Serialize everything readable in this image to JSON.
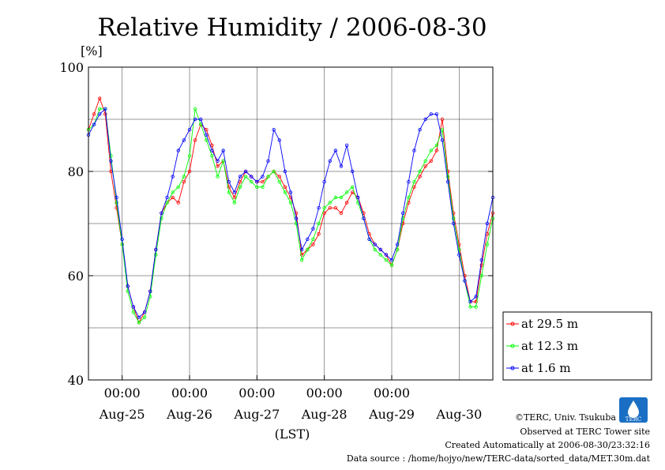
{
  "chart_data": {
    "type": "line",
    "title": "Relative Humidity / 2006-08-30",
    "ylabel": "[%]",
    "xlabel": "(LST)",
    "ylim": [
      40,
      100
    ],
    "yticks": [
      40,
      60,
      80,
      100
    ],
    "xlim_hours": [
      -12,
      132
    ],
    "x_time_labels": [
      "00:00",
      "00:00",
      "00:00",
      "00:00",
      "00:00"
    ],
    "x_date_labels": [
      "Aug-25",
      "Aug-26",
      "Aug-27",
      "Aug-28",
      "Aug-29",
      "Aug-30"
    ],
    "grid": true,
    "legend_position": "bottom-right outside",
    "series": [
      {
        "name": "at 29.5 m",
        "color": "#ff0000",
        "points": [
          [
            -12,
            88
          ],
          [
            -10,
            91
          ],
          [
            -8,
            94
          ],
          [
            -6,
            91
          ],
          [
            -4,
            80
          ],
          [
            -2,
            73
          ],
          [
            0,
            66
          ],
          [
            2,
            58
          ],
          [
            4,
            54
          ],
          [
            6,
            51
          ],
          [
            8,
            53
          ],
          [
            10,
            57
          ],
          [
            12,
            65
          ],
          [
            14,
            72
          ],
          [
            16,
            74
          ],
          [
            18,
            75
          ],
          [
            20,
            74
          ],
          [
            22,
            78
          ],
          [
            24,
            80
          ],
          [
            26,
            86
          ],
          [
            28,
            89
          ],
          [
            30,
            88
          ],
          [
            32,
            85
          ],
          [
            34,
            81
          ],
          [
            36,
            82
          ],
          [
            38,
            77
          ],
          [
            40,
            75
          ],
          [
            42,
            78
          ],
          [
            44,
            80
          ],
          [
            46,
            79
          ],
          [
            48,
            78
          ],
          [
            50,
            78
          ],
          [
            52,
            79
          ],
          [
            54,
            80
          ],
          [
            56,
            79
          ],
          [
            58,
            77
          ],
          [
            60,
            75
          ],
          [
            62,
            72
          ],
          [
            64,
            64
          ],
          [
            66,
            65
          ],
          [
            68,
            66
          ],
          [
            70,
            68
          ],
          [
            72,
            72
          ],
          [
            74,
            73
          ],
          [
            76,
            73
          ],
          [
            78,
            72
          ],
          [
            80,
            74
          ],
          [
            82,
            76
          ],
          [
            84,
            75
          ],
          [
            86,
            72
          ],
          [
            88,
            68
          ],
          [
            90,
            66
          ],
          [
            92,
            65
          ],
          [
            94,
            64
          ],
          [
            96,
            62
          ],
          [
            98,
            65
          ],
          [
            100,
            70
          ],
          [
            102,
            74
          ],
          [
            104,
            77
          ],
          [
            106,
            79
          ],
          [
            108,
            81
          ],
          [
            110,
            82
          ],
          [
            112,
            84
          ],
          [
            114,
            90
          ],
          [
            116,
            80
          ],
          [
            118,
            72
          ],
          [
            120,
            66
          ],
          [
            122,
            60
          ],
          [
            124,
            55
          ],
          [
            126,
            55
          ],
          [
            128,
            62
          ],
          [
            130,
            68
          ],
          [
            132,
            72
          ]
        ]
      },
      {
        "name": "at 12.3 m",
        "color": "#00ff00",
        "points": [
          [
            -12,
            88
          ],
          [
            -10,
            89
          ],
          [
            -8,
            92
          ],
          [
            -6,
            92
          ],
          [
            -4,
            83
          ],
          [
            -2,
            74
          ],
          [
            0,
            66
          ],
          [
            2,
            57
          ],
          [
            4,
            53
          ],
          [
            6,
            51
          ],
          [
            8,
            52
          ],
          [
            10,
            56
          ],
          [
            12,
            64
          ],
          [
            14,
            71
          ],
          [
            16,
            74
          ],
          [
            18,
            76
          ],
          [
            20,
            77
          ],
          [
            22,
            79
          ],
          [
            24,
            83
          ],
          [
            26,
            92
          ],
          [
            28,
            89
          ],
          [
            30,
            86
          ],
          [
            32,
            83
          ],
          [
            34,
            79
          ],
          [
            36,
            82
          ],
          [
            38,
            76
          ],
          [
            40,
            74
          ],
          [
            42,
            77
          ],
          [
            44,
            79
          ],
          [
            46,
            78
          ],
          [
            48,
            77
          ],
          [
            50,
            77
          ],
          [
            52,
            79
          ],
          [
            54,
            80
          ],
          [
            56,
            78
          ],
          [
            58,
            76
          ],
          [
            60,
            74
          ],
          [
            62,
            70
          ],
          [
            64,
            63
          ],
          [
            66,
            65
          ],
          [
            68,
            67
          ],
          [
            70,
            70
          ],
          [
            72,
            73
          ],
          [
            74,
            74
          ],
          [
            76,
            75
          ],
          [
            78,
            75
          ],
          [
            80,
            76
          ],
          [
            82,
            77
          ],
          [
            84,
            74
          ],
          [
            86,
            71
          ],
          [
            88,
            67
          ],
          [
            90,
            65
          ],
          [
            92,
            64
          ],
          [
            94,
            63
          ],
          [
            96,
            62
          ],
          [
            98,
            65
          ],
          [
            100,
            71
          ],
          [
            102,
            75
          ],
          [
            104,
            78
          ],
          [
            106,
            80
          ],
          [
            108,
            82
          ],
          [
            110,
            84
          ],
          [
            112,
            85
          ],
          [
            114,
            88
          ],
          [
            116,
            79
          ],
          [
            118,
            71
          ],
          [
            120,
            65
          ],
          [
            122,
            59
          ],
          [
            124,
            54
          ],
          [
            126,
            54
          ],
          [
            128,
            60
          ],
          [
            130,
            66
          ],
          [
            132,
            71
          ]
        ]
      },
      {
        "name": "at 1.6 m",
        "color": "#0000ff",
        "points": [
          [
            -12,
            87
          ],
          [
            -10,
            89
          ],
          [
            -8,
            91
          ],
          [
            -6,
            92
          ],
          [
            -4,
            82
          ],
          [
            -2,
            75
          ],
          [
            0,
            67
          ],
          [
            2,
            58
          ],
          [
            4,
            54
          ],
          [
            6,
            52
          ],
          [
            8,
            53
          ],
          [
            10,
            57
          ],
          [
            12,
            65
          ],
          [
            14,
            72
          ],
          [
            16,
            75
          ],
          [
            18,
            79
          ],
          [
            20,
            84
          ],
          [
            22,
            86
          ],
          [
            24,
            88
          ],
          [
            26,
            90
          ],
          [
            28,
            90
          ],
          [
            30,
            87
          ],
          [
            32,
            84
          ],
          [
            34,
            82
          ],
          [
            36,
            84
          ],
          [
            38,
            78
          ],
          [
            40,
            76
          ],
          [
            42,
            79
          ],
          [
            44,
            80
          ],
          [
            46,
            79
          ],
          [
            48,
            78
          ],
          [
            50,
            79
          ],
          [
            52,
            82
          ],
          [
            54,
            88
          ],
          [
            56,
            86
          ],
          [
            58,
            80
          ],
          [
            60,
            76
          ],
          [
            62,
            71
          ],
          [
            64,
            65
          ],
          [
            66,
            67
          ],
          [
            68,
            69
          ],
          [
            70,
            73
          ],
          [
            72,
            78
          ],
          [
            74,
            82
          ],
          [
            76,
            84
          ],
          [
            78,
            81
          ],
          [
            80,
            85
          ],
          [
            82,
            80
          ],
          [
            84,
            75
          ],
          [
            86,
            71
          ],
          [
            88,
            67
          ],
          [
            90,
            66
          ],
          [
            92,
            65
          ],
          [
            94,
            64
          ],
          [
            96,
            63
          ],
          [
            98,
            66
          ],
          [
            100,
            72
          ],
          [
            102,
            78
          ],
          [
            104,
            84
          ],
          [
            106,
            88
          ],
          [
            108,
            90
          ],
          [
            110,
            91
          ],
          [
            112,
            91
          ],
          [
            114,
            86
          ],
          [
            116,
            78
          ],
          [
            118,
            70
          ],
          [
            120,
            64
          ],
          [
            122,
            59
          ],
          [
            124,
            55
          ],
          [
            126,
            56
          ],
          [
            128,
            63
          ],
          [
            130,
            70
          ],
          [
            132,
            75
          ]
        ]
      }
    ]
  },
  "credits": {
    "copyright": "©TERC, Univ. Tsukuba",
    "observed": "Observed at TERC Tower site",
    "created": "Created Automatically at 2006-08-30/23:32:16",
    "source": "Data source : /home/hojyo/new/TERC-data/sorted_data/MET.30m.dat"
  },
  "logo": {
    "text": "TERC",
    "color": "#1a6fc4"
  }
}
